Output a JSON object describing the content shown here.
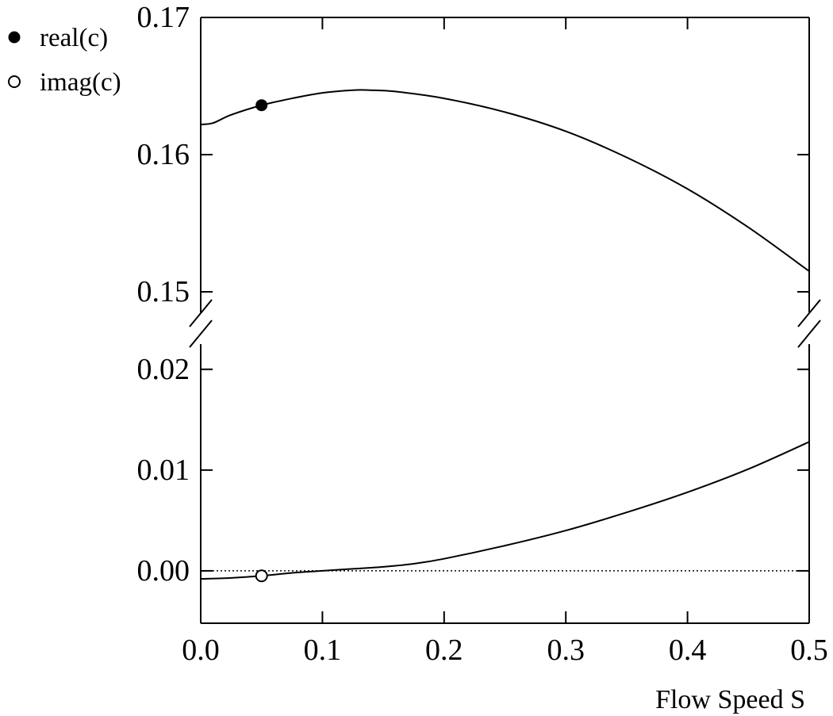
{
  "chart_data": {
    "type": "line",
    "title": "",
    "xlabel": "Flow Speed S",
    "ylabel": "",
    "xlim": [
      0.0,
      0.5
    ],
    "x_ticks": [
      "0.0",
      "0.1",
      "0.2",
      "0.3",
      "0.4",
      "0.5"
    ],
    "x_tick_values": [
      0.0,
      0.1,
      0.2,
      0.3,
      0.4,
      0.5
    ],
    "axis_break": true,
    "upper_panel": {
      "ylim": [
        0.1485,
        0.17
      ],
      "y_ticks": [
        "0.15",
        "0.16",
        "0.17"
      ],
      "y_tick_values": [
        0.15,
        0.16,
        0.17
      ]
    },
    "lower_panel": {
      "ylim": [
        -0.0052,
        0.0225
      ],
      "y_ticks": [
        "0.00",
        "0.01",
        "0.02"
      ],
      "y_tick_values": [
        0.0,
        0.01,
        0.02
      ],
      "reference_line": 0.0
    },
    "grid": false,
    "legend_placement": "top-left",
    "series": [
      {
        "name": "real(c)",
        "marker": "filled-circle",
        "panel": "upper",
        "color": "#000000",
        "marker_x": 0.05,
        "x": [
          0.0,
          0.01,
          0.025,
          0.05,
          0.075,
          0.1,
          0.125,
          0.14,
          0.16,
          0.2,
          0.25,
          0.3,
          0.35,
          0.4,
          0.45,
          0.5
        ],
        "y": [
          0.1622,
          0.1623,
          0.1629,
          0.1636,
          0.1641,
          0.1645,
          0.1647,
          0.1647,
          0.1646,
          0.1641,
          0.1631,
          0.1617,
          0.1598,
          0.1575,
          0.1547,
          0.1515
        ]
      },
      {
        "name": "imag(c)",
        "marker": "open-circle",
        "panel": "lower",
        "color": "#000000",
        "marker_x": 0.05,
        "x": [
          0.0,
          0.025,
          0.05,
          0.075,
          0.1,
          0.125,
          0.15,
          0.175,
          0.2,
          0.25,
          0.3,
          0.35,
          0.4,
          0.45,
          0.5
        ],
        "y": [
          -0.0008,
          -0.0007,
          -0.0005,
          -0.0002,
          0.0,
          0.0002,
          0.0004,
          0.0007,
          0.0012,
          0.0025,
          0.004,
          0.0058,
          0.0078,
          0.0101,
          0.0128
        ]
      }
    ]
  }
}
